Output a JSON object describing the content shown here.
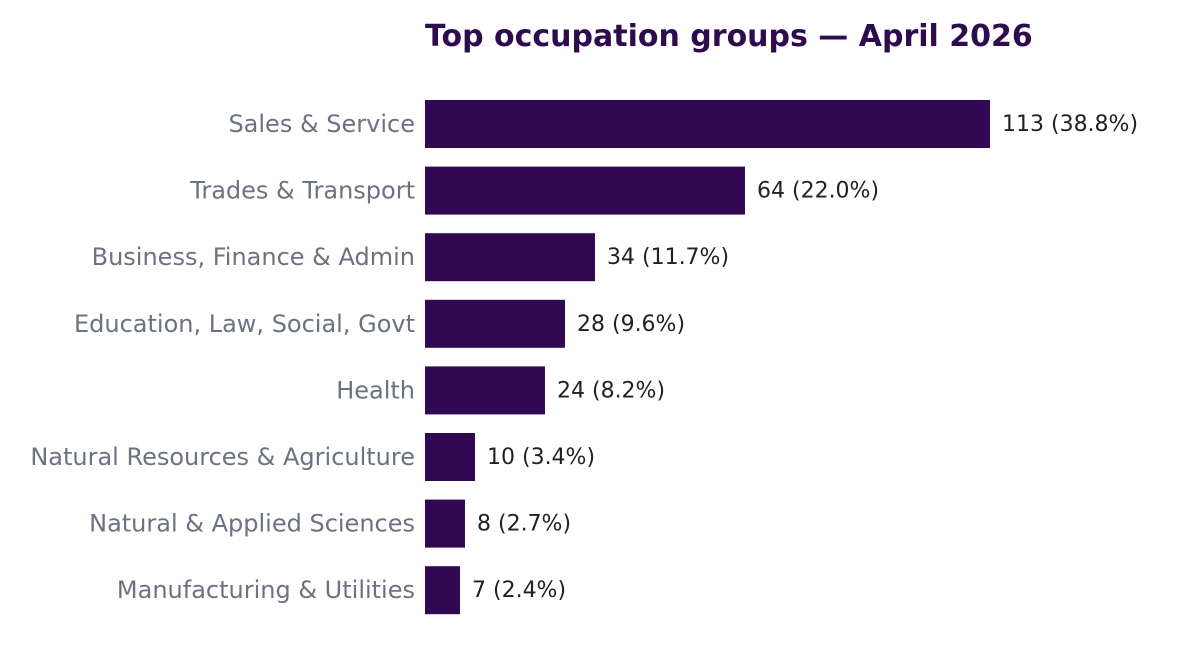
{
  "chart_data": {
    "type": "bar",
    "orientation": "horizontal",
    "title": "Top occupation groups — April 2026",
    "categories": [
      "Sales & Service",
      "Trades & Transport",
      "Business, Finance & Admin",
      "Education, Law, Social, Govt",
      "Health",
      "Natural Resources & Agriculture",
      "Natural & Applied Sciences",
      "Manufacturing & Utilities"
    ],
    "values": [
      113,
      64,
      34,
      28,
      24,
      10,
      8,
      7
    ],
    "percent_labels": [
      "(38.8%)",
      "(22.0%)",
      "(11.7%)",
      "(9.6%)",
      "(8.2%)",
      "(3.4%)",
      "(2.7%)",
      "(2.4%)"
    ],
    "xlim": [
      0,
      113
    ],
    "grid": false,
    "legend": "none"
  },
  "colors": {
    "bar": "#310952",
    "title": "#2e0a4f",
    "category_label": "#6b7280",
    "value_label": "#222222"
  }
}
